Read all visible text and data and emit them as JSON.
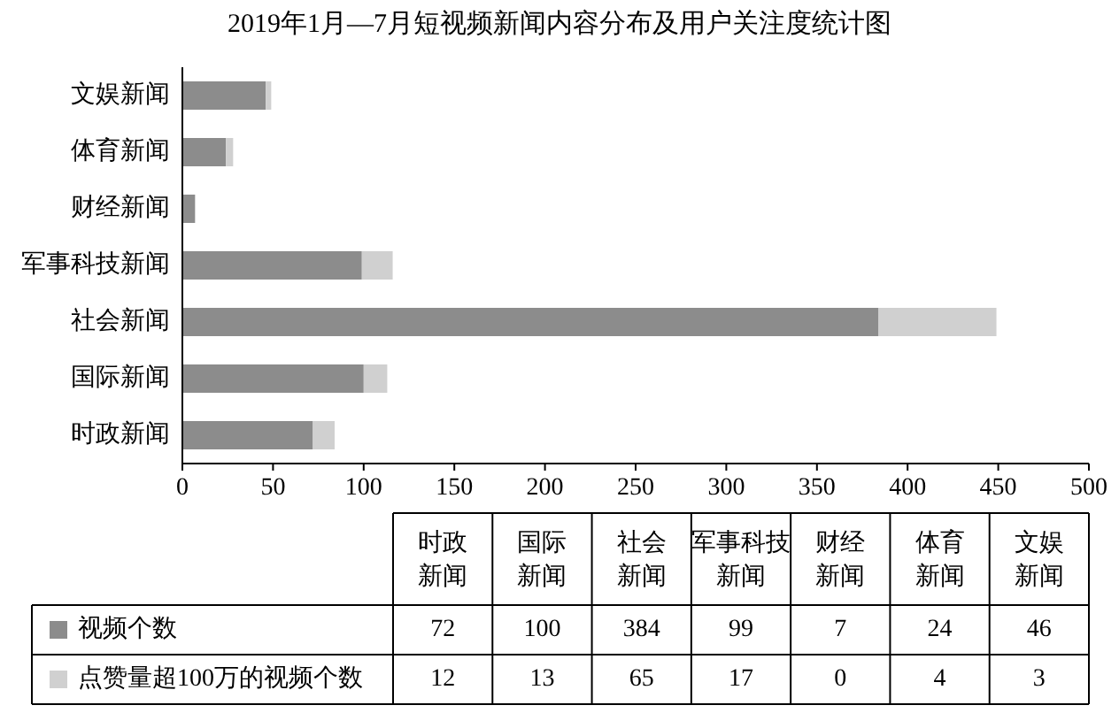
{
  "chart_data": [
    {
      "type": "bar",
      "orientation": "horizontal",
      "stacked": true,
      "title": "2019年1月—7月短视频新闻内容分布及用户关注度统计图",
      "categories": [
        "文娱新闻",
        "体育新闻",
        "财经新闻",
        "军事科技新闻",
        "社会新闻",
        "国际新闻",
        "时政新闻"
      ],
      "series": [
        {
          "color": "#8c8c8c",
          "values": [
            46,
            24,
            7,
            99,
            384,
            100,
            72
          ]
        },
        {
          "color": "#d0d0d0",
          "values": [
            3,
            4,
            0,
            17,
            65,
            13,
            12
          ]
        }
      ],
      "xlim": [
        0,
        500
      ],
      "xticks": [
        0,
        50,
        100,
        150,
        200,
        250,
        300,
        350,
        400,
        450,
        500
      ]
    },
    {
      "type": "other",
      "categories": [
        "时政新闻",
        "国际新闻",
        "社会新闻",
        "军事科技新闻",
        "财经新闻",
        "体育新闻",
        "文娱新闻"
      ],
      "series": [
        {
          "name": "视频个数",
          "color": "#8c8c8c",
          "values": [
            72,
            100,
            384,
            99,
            7,
            24,
            46
          ]
        },
        {
          "name": "点赞量超100万的视频个数",
          "color": "#d0d0d0",
          "values": [
            12,
            13,
            65,
            17,
            0,
            4,
            3
          ]
        }
      ],
      "data_labels": true,
      "legend": "left"
    }
  ]
}
